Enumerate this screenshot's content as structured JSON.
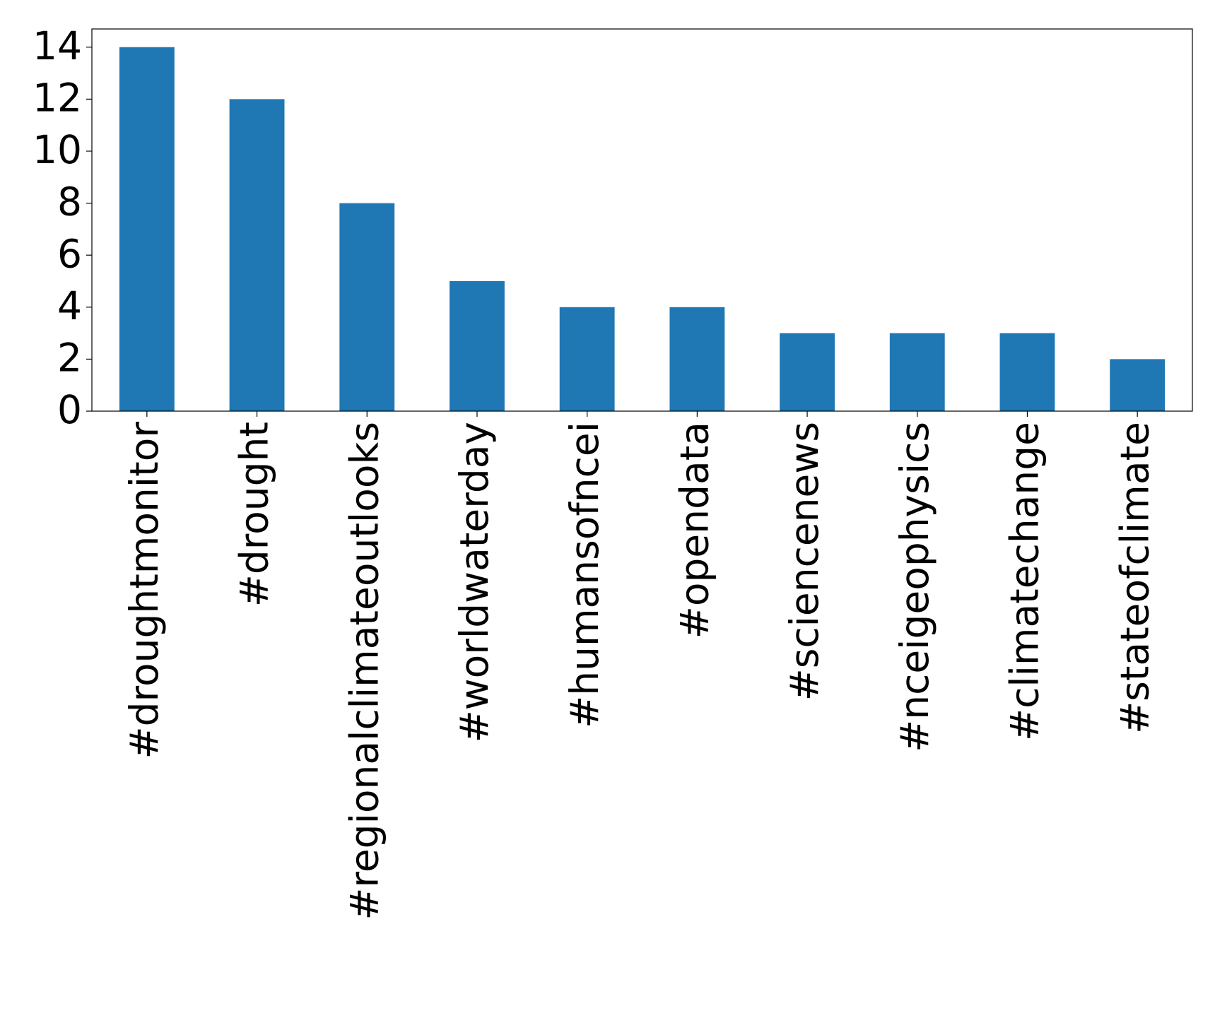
{
  "chart_data": {
    "type": "bar",
    "categories": [
      "#droughtmonitor",
      "#drought",
      "#regionalclimateoutlooks",
      "#worldwaterday",
      "#humansofncei",
      "#opendata",
      "#sciencenews",
      "#nceigeophysics",
      "#climatechange",
      "#stateofclimate"
    ],
    "values": [
      14,
      12,
      8,
      5,
      4,
      4,
      3,
      3,
      3,
      2
    ],
    "color": "#1f77b4",
    "ylim": [
      0,
      14.7
    ],
    "yticks": [
      0,
      2,
      4,
      6,
      8,
      10,
      12,
      14
    ],
    "grid": false
  }
}
